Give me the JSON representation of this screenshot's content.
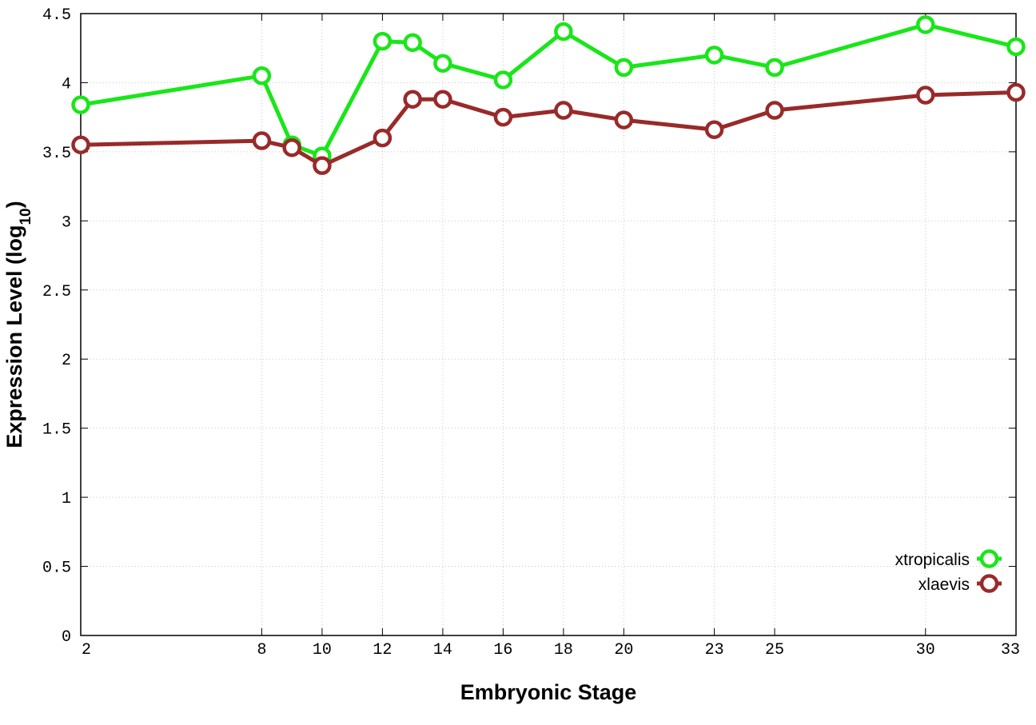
{
  "chart_data": {
    "type": "line",
    "xlabel": "Embryonic Stage",
    "ylabel": "Expression Level (log",
    "ylabel_subscript": "10",
    "ylabel_close": ")",
    "x": [
      2,
      8,
      9,
      10,
      12,
      13,
      14,
      16,
      18,
      20,
      23,
      25,
      30,
      33
    ],
    "xticks": [
      2,
      8,
      10,
      12,
      14,
      16,
      18,
      20,
      23,
      25,
      30,
      33
    ],
    "xtick_labels": [
      "2",
      "8",
      "10",
      "12",
      "14",
      "16",
      "18",
      "20",
      "23",
      "25",
      "30",
      "33"
    ],
    "xlim": [
      2,
      33
    ],
    "yticks": [
      0,
      0.5,
      1,
      1.5,
      2,
      2.5,
      3,
      3.5,
      4,
      4.5
    ],
    "ytick_labels": [
      "0",
      "0.5",
      "1",
      "1.5",
      "2",
      "2.5",
      "3",
      "3.5",
      "4",
      "4.5"
    ],
    "ylim": [
      0,
      4.5
    ],
    "grid": true,
    "legend_position": "bottom-right",
    "series": [
      {
        "name": "xtropicalis",
        "color": "#19e619",
        "values": [
          3.84,
          4.05,
          3.55,
          3.47,
          4.3,
          4.29,
          4.14,
          4.02,
          4.37,
          4.11,
          4.2,
          4.11,
          4.42,
          4.26
        ]
      },
      {
        "name": "xlaevis",
        "color": "#992a2a",
        "values": [
          3.55,
          3.58,
          3.53,
          3.4,
          3.6,
          3.88,
          3.88,
          3.75,
          3.8,
          3.73,
          3.66,
          3.8,
          3.91,
          3.93
        ]
      }
    ]
  }
}
